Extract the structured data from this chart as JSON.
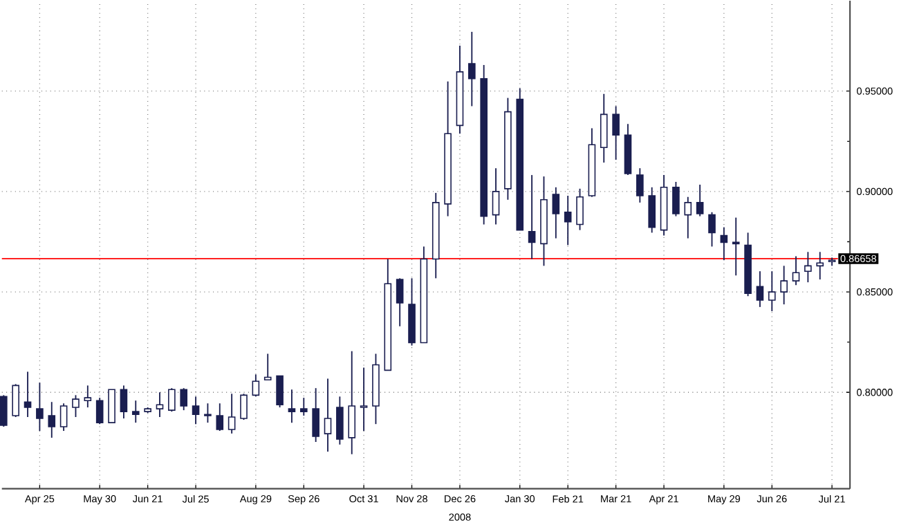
{
  "chart_data": {
    "type": "candlestick",
    "categories": [
      null,
      null,
      null,
      "Apr 25",
      null,
      null,
      null,
      null,
      "May 30",
      null,
      null,
      null,
      "Jun 21",
      null,
      null,
      null,
      "Jul 25",
      null,
      null,
      null,
      null,
      "Aug 29",
      null,
      null,
      null,
      "Sep 26",
      null,
      null,
      null,
      null,
      "Oct 31",
      null,
      null,
      null,
      "Nov 28",
      null,
      null,
      null,
      "Dec 26",
      null,
      null,
      null,
      null,
      "Jan 30",
      null,
      null,
      null,
      "Feb 21",
      null,
      null,
      null,
      "Mar 21",
      null,
      null,
      null,
      "Apr 21",
      null,
      null,
      null,
      null,
      "May 29",
      null,
      null,
      null,
      "Jun 26",
      null,
      null,
      null,
      null,
      "Jul 21"
    ],
    "ohlc": [
      [
        0.7979,
        0.7986,
        0.7829,
        0.7836
      ],
      [
        0.7884,
        0.8041,
        0.7877,
        0.8034
      ],
      [
        0.7952,
        0.8103,
        0.7877,
        0.7925
      ],
      [
        0.7918,
        0.8048,
        0.7808,
        0.787
      ],
      [
        0.7884,
        0.7952,
        0.7774,
        0.7829
      ],
      [
        0.7829,
        0.7945,
        0.7808,
        0.7932
      ],
      [
        0.7925,
        0.7986,
        0.7877,
        0.7966
      ],
      [
        0.7959,
        0.8034,
        0.7925,
        0.7973
      ],
      [
        0.7959,
        0.7973,
        0.7842,
        0.7849
      ],
      [
        0.7849,
        0.8014,
        0.7849,
        0.8014
      ],
      [
        0.8014,
        0.8034,
        0.787,
        0.7904
      ],
      [
        0.7904,
        0.7959,
        0.7849,
        0.789
      ],
      [
        0.7904,
        0.7925,
        0.7897,
        0.7918
      ],
      [
        0.7918,
        0.8,
        0.7877,
        0.7938
      ],
      [
        0.7911,
        0.8021,
        0.7904,
        0.8014
      ],
      [
        0.8014,
        0.8021,
        0.7911,
        0.7932
      ],
      [
        0.7932,
        0.7979,
        0.7842,
        0.789
      ],
      [
        0.789,
        0.7945,
        0.7849,
        0.7884
      ],
      [
        0.7884,
        0.7945,
        0.7808,
        0.7815
      ],
      [
        0.7815,
        0.7993,
        0.7795,
        0.7877
      ],
      [
        0.787,
        0.7993,
        0.7863,
        0.7986
      ],
      [
        0.7986,
        0.8089,
        0.7979,
        0.8055
      ],
      [
        0.8062,
        0.8192,
        0.8062,
        0.8075
      ],
      [
        0.8082,
        0.8082,
        0.7925,
        0.7938
      ],
      [
        0.7918,
        0.8014,
        0.7849,
        0.7904
      ],
      [
        0.7918,
        0.7973,
        0.7884,
        0.7904
      ],
      [
        0.7918,
        0.8021,
        0.7753,
        0.7781
      ],
      [
        0.7794,
        0.8068,
        0.7705,
        0.787
      ],
      [
        0.7925,
        0.7979,
        0.774,
        0.7767
      ],
      [
        0.7774,
        0.8205,
        0.7692,
        0.7932
      ],
      [
        0.7925,
        0.8123,
        0.7808,
        0.7932
      ],
      [
        0.7932,
        0.8192,
        0.7842,
        0.8137
      ],
      [
        0.811,
        0.8664,
        0.811,
        0.8541
      ],
      [
        0.8562,
        0.8568,
        0.8329,
        0.8445
      ],
      [
        0.8438,
        0.8568,
        0.8233,
        0.8247
      ],
      [
        0.8247,
        0.8726,
        0.8247,
        0.8664
      ],
      [
        0.8664,
        0.8993,
        0.8568,
        0.8945
      ],
      [
        0.8938,
        0.9548,
        0.8877,
        0.9288
      ],
      [
        0.9329,
        0.9726,
        0.9288,
        0.9596
      ],
      [
        0.9637,
        0.9795,
        0.9425,
        0.9562
      ],
      [
        0.9562,
        0.963,
        0.8836,
        0.8877
      ],
      [
        0.8884,
        0.9116,
        0.8836,
        0.9
      ],
      [
        0.9014,
        0.9466,
        0.8959,
        0.9397
      ],
      [
        0.9459,
        0.9514,
        0.8808,
        0.8808
      ],
      [
        0.8801,
        0.9082,
        0.8664,
        0.8747
      ],
      [
        0.874,
        0.9075,
        0.863,
        0.8959
      ],
      [
        0.8986,
        0.9021,
        0.8767,
        0.889
      ],
      [
        0.8897,
        0.8979,
        0.8733,
        0.8849
      ],
      [
        0.8836,
        0.9014,
        0.8808,
        0.8973
      ],
      [
        0.8979,
        0.9315,
        0.8973,
        0.9233
      ],
      [
        0.9219,
        0.9486,
        0.9144,
        0.9384
      ],
      [
        0.9384,
        0.9425,
        0.9158,
        0.9281
      ],
      [
        0.9281,
        0.9336,
        0.9082,
        0.9089
      ],
      [
        0.9082,
        0.9116,
        0.8945,
        0.8979
      ],
      [
        0.8979,
        0.9021,
        0.8795,
        0.8822
      ],
      [
        0.8808,
        0.9082,
        0.8781,
        0.9021
      ],
      [
        0.9021,
        0.9048,
        0.8877,
        0.889
      ],
      [
        0.8884,
        0.8973,
        0.8767,
        0.8945
      ],
      [
        0.8945,
        0.9034,
        0.8877,
        0.889
      ],
      [
        0.8884,
        0.8897,
        0.8726,
        0.8795
      ],
      [
        0.8781,
        0.8822,
        0.8658,
        0.8747
      ],
      [
        0.8747,
        0.887,
        0.8582,
        0.874
      ],
      [
        0.8733,
        0.8795,
        0.8479,
        0.8493
      ],
      [
        0.8527,
        0.8603,
        0.8425,
        0.8459
      ],
      [
        0.8459,
        0.8603,
        0.8404,
        0.85
      ],
      [
        0.85,
        0.863,
        0.8438,
        0.8555
      ],
      [
        0.8555,
        0.8678,
        0.8534,
        0.8596
      ],
      [
        0.8603,
        0.8699,
        0.8548,
        0.863
      ],
      [
        0.863,
        0.8699,
        0.8562,
        0.8644
      ],
      [
        0.8651,
        0.8671,
        0.863,
        0.8658
      ]
    ],
    "ylim": [
      0.752,
      0.995
    ],
    "yticks": [
      {
        "value": 0.8,
        "label": "0.80000"
      },
      {
        "value": 0.85,
        "label": "0.85000"
      },
      {
        "value": 0.9,
        "label": "0.90000"
      },
      {
        "value": 0.95,
        "label": "0.95000"
      }
    ],
    "grid": true,
    "ref_lines": [
      {
        "axis": "y",
        "value": 0.86658,
        "label": "0.86658",
        "color": "#ff2020"
      }
    ],
    "annotations": [
      "2008"
    ]
  }
}
